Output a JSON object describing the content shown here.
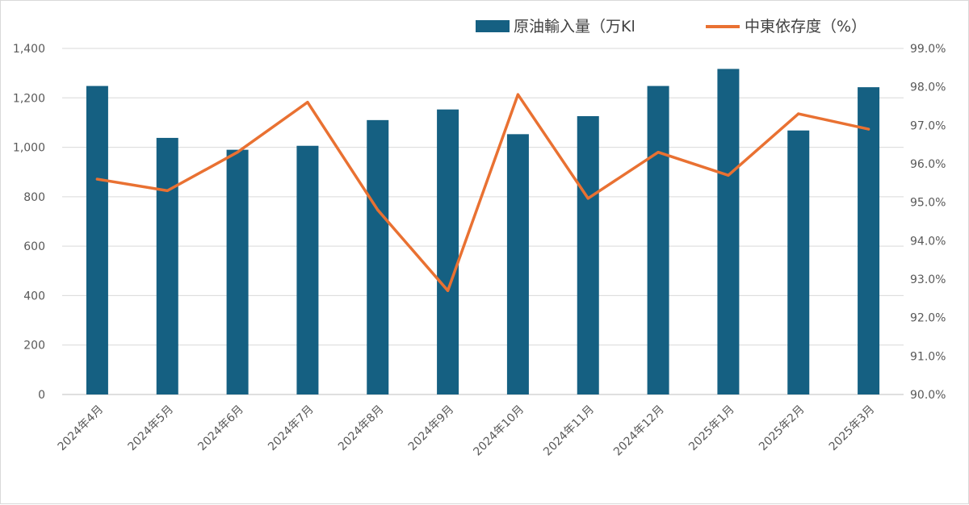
{
  "chart_data": {
    "type": "bar",
    "categories": [
      "2024年4月",
      "2024年5月",
      "2024年6月",
      "2024年7月",
      "2024年8月",
      "2024年9月",
      "2024年10月",
      "2024年11月",
      "2024年12月",
      "2025年1月",
      "2025年2月",
      "2025年3月"
    ],
    "series": [
      {
        "name": "原油輸入量（万Kl",
        "type": "bar",
        "axis": "left",
        "color": "#156082",
        "values": [
          1248,
          1038,
          990,
          1006,
          1110,
          1153,
          1053,
          1126,
          1248,
          1317,
          1068,
          1243
        ]
      },
      {
        "name": "中東依存度（%）",
        "type": "line",
        "axis": "right",
        "color": "#E97132",
        "values": [
          95.6,
          95.3,
          96.3,
          97.6,
          94.8,
          92.7,
          97.8,
          95.1,
          96.3,
          95.7,
          97.3,
          96.9
        ]
      }
    ],
    "y_left": {
      "ylim": [
        0,
        1400
      ],
      "tick_labels": [
        "0",
        "200",
        "400",
        "600",
        "800",
        "1,000",
        "1,200",
        "1,400"
      ]
    },
    "y_right": {
      "ylim": [
        90.0,
        99.0
      ],
      "tick_labels": [
        "90.0%",
        "91.0%",
        "92.0%",
        "93.0%",
        "94.0%",
        "95.0%",
        "96.0%",
        "97.0%",
        "98.0%",
        "99.0%"
      ]
    },
    "grid": true,
    "legend_position": "top-right"
  }
}
